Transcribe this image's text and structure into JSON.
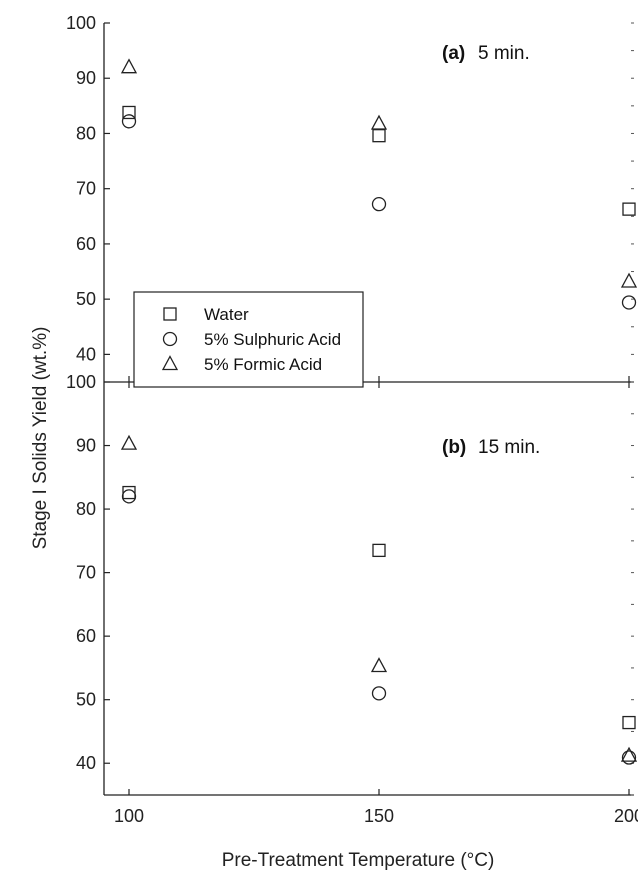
{
  "chart_data": [
    {
      "type": "scatter",
      "panel_label": "(a)",
      "panel_title": "5 min.",
      "xlabel": "Pre-Treatment Temperature (°C)",
      "ylabel": "Stage I Solids Yield (wt.%)",
      "xlim": [
        95,
        201
      ],
      "ylim": [
        35,
        100
      ],
      "x_ticks": [
        100,
        150,
        200
      ],
      "y_ticks": [
        40,
        50,
        60,
        70,
        80,
        90,
        100
      ],
      "legend_position": "center-left",
      "series": [
        {
          "name": "Water",
          "marker": "square",
          "x": [
            100,
            150,
            200
          ],
          "y": [
            83.8,
            79.6,
            66.3
          ]
        },
        {
          "name": "5% Sulphuric Acid",
          "marker": "circle",
          "x": [
            100,
            150,
            200
          ],
          "y": [
            82.2,
            67.2,
            49.4
          ]
        },
        {
          "name": "5% Formic Acid",
          "marker": "triangle",
          "x": [
            100,
            150,
            200
          ],
          "y": [
            92.0,
            81.8,
            53.2
          ]
        }
      ]
    },
    {
      "type": "scatter",
      "panel_label": "(b)",
      "panel_title": "15 min.",
      "xlabel": "Pre-Treatment Temperature (°C)",
      "ylabel": "Stage I Solids Yield (wt.%)",
      "xlim": [
        95,
        201
      ],
      "ylim": [
        35,
        100
      ],
      "x_ticks": [
        100,
        150,
        200
      ],
      "y_ticks": [
        40,
        50,
        60,
        70,
        80,
        90,
        100
      ],
      "series": [
        {
          "name": "Water",
          "marker": "square",
          "x": [
            100,
            150,
            200
          ],
          "y": [
            82.6,
            73.5,
            46.4
          ]
        },
        {
          "name": "5% Sulphuric Acid",
          "marker": "circle",
          "x": [
            100,
            150,
            200
          ],
          "y": [
            82.0,
            51.0,
            40.9
          ]
        },
        {
          "name": "5% Formic Acid",
          "marker": "triangle",
          "x": [
            100,
            150,
            200
          ],
          "y": [
            90.3,
            55.3,
            41.2
          ]
        }
      ]
    }
  ],
  "shared": {
    "ylabel": "Stage I Solids Yield (wt.%)",
    "xlabel": "Pre-Treatment Temperature (°C)"
  }
}
